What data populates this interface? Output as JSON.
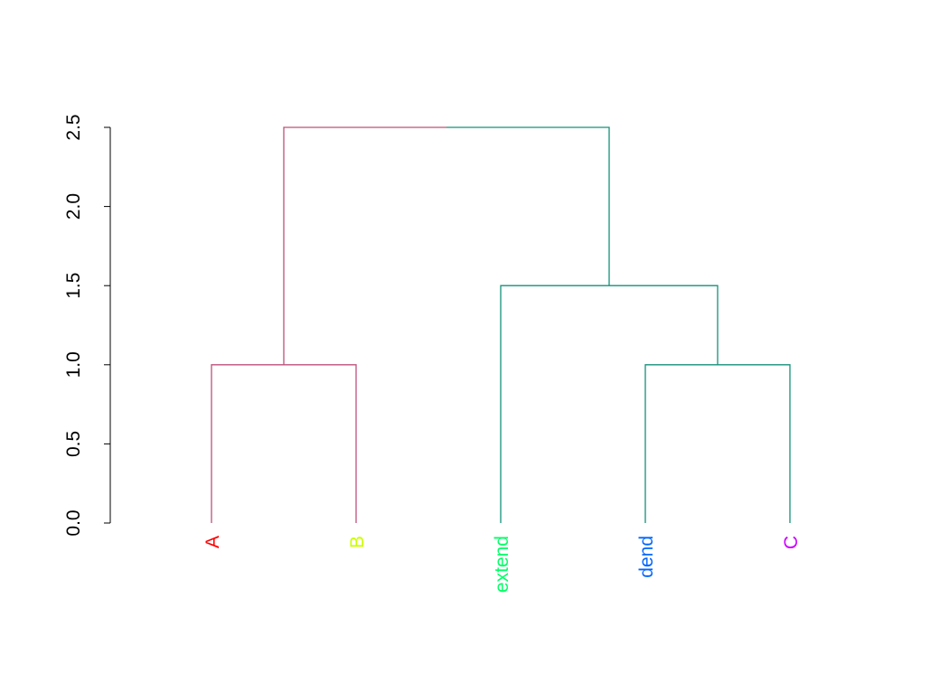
{
  "chart_data": {
    "type": "dendrogram",
    "title": "",
    "xlabel": "",
    "ylabel": "",
    "ylim": [
      0,
      2.5
    ],
    "yticks": [
      "0.0",
      "0.5",
      "1.0",
      "1.5",
      "2.0",
      "2.5"
    ],
    "leaves": [
      {
        "label": "A",
        "color": "#FF0000"
      },
      {
        "label": "B",
        "color": "#CCFF00"
      },
      {
        "label": "extend",
        "color": "#00FF66"
      },
      {
        "label": "dend",
        "color": "#0066FF"
      },
      {
        "label": "C",
        "color": "#CC00FF"
      }
    ],
    "merges": [
      {
        "left": "A",
        "right": "B",
        "height": 1.0,
        "id": "AB",
        "color": "#BE5079"
      },
      {
        "left": "dend",
        "right": "C",
        "height": 1.0,
        "id": "DC",
        "color": "#14917B"
      },
      {
        "left": "extend",
        "right": "DC",
        "height": 1.5,
        "id": "EDC",
        "color": "#14917B"
      },
      {
        "left": "AB",
        "right": "EDC",
        "height": 2.5,
        "id": "root",
        "color": "#14917B",
        "left_color": "#BE5079",
        "right_color": "#14917B"
      }
    ]
  }
}
